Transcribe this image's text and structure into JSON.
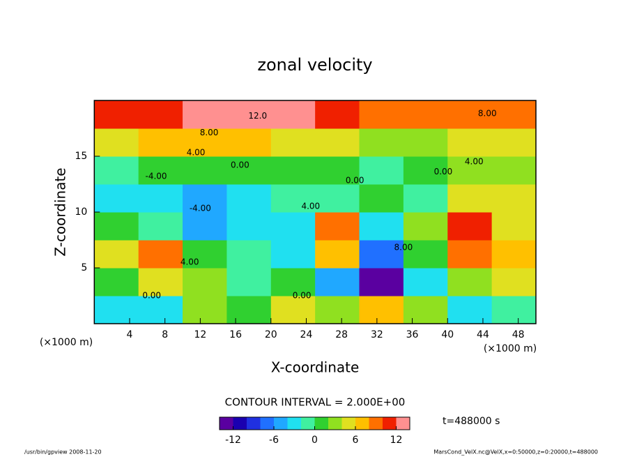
{
  "chart_data": {
    "type": "heatmap",
    "title": "zonal velocity",
    "x_label": "X-coordinate",
    "y_label": "Z-coordinate",
    "x_unit_left": "(×1000 m)",
    "x_unit_right": "(×1000 m)",
    "x": [
      2.5,
      7.5,
      12.5,
      17.5,
      22.5,
      27.5,
      32.5,
      37.5,
      42.5,
      47.5
    ],
    "z": [
      1.25,
      3.75,
      6.25,
      8.75,
      11.25,
      13.75,
      16.25,
      18.75
    ],
    "values": [
      [
        -4,
        -4,
        2,
        0,
        4,
        2,
        6,
        2,
        -4,
        -2
      ],
      [
        0,
        4,
        2,
        -2,
        0,
        -6,
        -14,
        -4,
        2,
        4
      ],
      [
        4,
        8,
        0,
        -2,
        -4,
        6,
        -8,
        0,
        8,
        6
      ],
      [
        0,
        -2,
        -6,
        -4,
        -4,
        8,
        -4,
        2,
        10,
        4
      ],
      [
        -4,
        -4,
        -6,
        -3,
        -2,
        -1,
        0,
        -2,
        4,
        4
      ],
      [
        -2,
        0,
        1,
        0,
        0,
        0,
        -1,
        0,
        2,
        2
      ],
      [
        4,
        6,
        7,
        6,
        5,
        4,
        3,
        3,
        4,
        5
      ],
      [
        10,
        10,
        12,
        14,
        12,
        10,
        9,
        9,
        9,
        9
      ]
    ],
    "xlim": [
      0,
      50
    ],
    "ylim": [
      0,
      20
    ],
    "xticks": [
      4,
      8,
      12,
      16,
      20,
      24,
      28,
      32,
      36,
      40,
      44,
      48
    ],
    "yticks": [
      5,
      10,
      15
    ],
    "contour_labels": [
      {
        "text": "12.0",
        "x": 18.5,
        "y": 18.6
      },
      {
        "text": "8.00",
        "x": 13,
        "y": 17.1
      },
      {
        "text": "8.00",
        "x": 44.5,
        "y": 18.8
      },
      {
        "text": "4.00",
        "x": 11.5,
        "y": 15.3
      },
      {
        "text": "0.00",
        "x": 16.5,
        "y": 14.2
      },
      {
        "text": "-4.00",
        "x": 7,
        "y": 13.2
      },
      {
        "text": "-4.00",
        "x": 12,
        "y": 10.3
      },
      {
        "text": "0.00",
        "x": 29.5,
        "y": 12.8
      },
      {
        "text": "4.00",
        "x": 24.5,
        "y": 10.5
      },
      {
        "text": "8.00",
        "x": 35,
        "y": 6.8
      },
      {
        "text": "0.00",
        "x": 6.5,
        "y": 2.5
      },
      {
        "text": "0.00",
        "x": 23.5,
        "y": 2.5
      },
      {
        "text": "4.00",
        "x": 10.8,
        "y": 5.5
      },
      {
        "text": "0.00",
        "x": 39.5,
        "y": 13.6
      },
      {
        "text": "4.00",
        "x": 43,
        "y": 14.5
      }
    ],
    "contour_interval": "CONTOUR INTERVAL = 2.000E+00",
    "colorbar": {
      "levels": [
        -14,
        -12,
        -10,
        -8,
        -6,
        -4,
        -2,
        0,
        2,
        4,
        6,
        8,
        10,
        12,
        14
      ],
      "colors": [
        "#5a00a0",
        "#1a00b0",
        "#2030e0",
        "#2070ff",
        "#20a8ff",
        "#20e0f0",
        "#40f0a0",
        "#30d030",
        "#90e020",
        "#e0e020",
        "#ffc000",
        "#ff7000",
        "#f02000",
        "#ff9090"
      ],
      "ticks": [
        -12,
        -6,
        0,
        6,
        12
      ]
    },
    "time_label": "t=488000 s",
    "footer_left": "/usr/bin/gpview  2008-11-20",
    "footer_right": "MarsCond_VelX.nc@VelX,x=0:50000,z=0:20000,t=488000"
  }
}
